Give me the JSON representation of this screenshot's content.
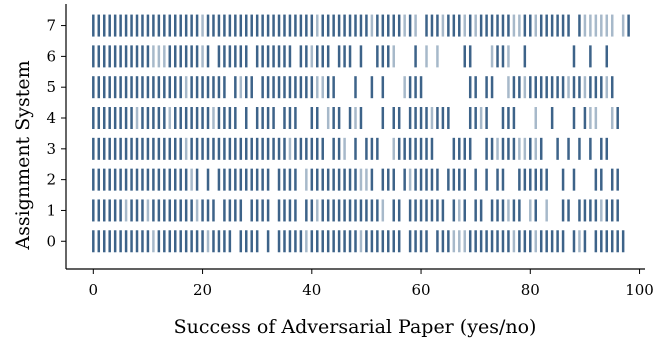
{
  "chart_data": {
    "type": "event-strip",
    "xlabel": "Success of Adversarial Paper (yes/no)",
    "ylabel": "Assignment System",
    "xlim": [
      -5,
      101
    ],
    "ylim": [
      -0.9,
      7.7
    ],
    "xticks": [
      0,
      20,
      40,
      60,
      80,
      100
    ],
    "yticks": [
      0,
      1,
      2,
      3,
      4,
      5,
      6,
      7
    ],
    "spines": [
      "left",
      "bottom"
    ],
    "grid": false,
    "colors": {
      "success": "#3d6389",
      "failure": "#a7b9ca"
    },
    "encoding": "each tick = one adversarial paper; dark = success (yes), light = failure (no)",
    "rows": [
      {
        "system": 0,
        "last": 97,
        "gaps": [
          [
            26,
            27
          ],
          [
            31,
            32
          ],
          [
            33,
            34
          ],
          [
            57,
            58
          ],
          [
            62,
            63
          ],
          [
            87,
            88
          ],
          [
            91,
            92
          ]
        ],
        "fail": [
          [
            11,
            12
          ],
          [
            21,
            22
          ],
          [
            33,
            34
          ],
          [
            39,
            40
          ],
          [
            49,
            50
          ],
          [
            66,
            69
          ],
          [
            77,
            78
          ],
          [
            81,
            82
          ],
          [
            89,
            90
          ]
        ]
      },
      {
        "system": 1,
        "last": 96,
        "gaps": [
          [
            23,
            24
          ],
          [
            28,
            29
          ],
          [
            33,
            34
          ],
          [
            38,
            39
          ],
          [
            54,
            55
          ],
          [
            57,
            58
          ],
          [
            65,
            66
          ],
          [
            69,
            70
          ],
          [
            72,
            73
          ],
          [
            79,
            80
          ],
          [
            82,
            83
          ],
          [
            84,
            85
          ],
          [
            85,
            86
          ],
          [
            88,
            89
          ]
        ],
        "fail": [
          [
            6,
            7
          ],
          [
            10,
            11
          ],
          [
            19,
            20
          ],
          [
            41,
            42
          ],
          [
            53,
            54
          ],
          [
            67,
            68
          ],
          [
            76,
            77
          ],
          [
            80,
            81
          ],
          [
            83,
            84
          ],
          [
            93,
            94
          ]
        ]
      },
      {
        "system": 2,
        "last": 96,
        "gaps": [
          [
            20,
            21
          ],
          [
            22,
            23
          ],
          [
            33,
            34
          ],
          [
            38,
            39
          ],
          [
            52,
            53
          ],
          [
            56,
            57
          ],
          [
            64,
            65
          ],
          [
            69,
            70
          ],
          [
            71,
            72
          ],
          [
            73,
            74
          ],
          [
            76,
            77
          ],
          [
            77,
            78
          ],
          [
            84,
            85
          ],
          [
            85,
            86
          ],
          [
            87,
            88
          ],
          [
            89,
            90
          ],
          [
            90,
            91
          ],
          [
            91,
            92
          ],
          [
            94,
            95
          ]
        ],
        "fail": [
          [
            18,
            19
          ],
          [
            38,
            39
          ],
          [
            39,
            40
          ],
          [
            49,
            50
          ],
          [
            50,
            51
          ],
          [
            58,
            59
          ],
          [
            69,
            70
          ],
          [
            84,
            85
          ]
        ]
      },
      {
        "system": 3,
        "last": 94,
        "gaps": [
          [
            43,
            44
          ],
          [
            47,
            48
          ],
          [
            49,
            50
          ],
          [
            53,
            54
          ],
          [
            54,
            55
          ],
          [
            63,
            64
          ],
          [
            64,
            65
          ],
          [
            65,
            66
          ],
          [
            70,
            71
          ],
          [
            71,
            72
          ],
          [
            83,
            84
          ],
          [
            84,
            85
          ],
          [
            86,
            87
          ],
          [
            88,
            89
          ],
          [
            90,
            91
          ],
          [
            92,
            93
          ]
        ],
        "fail": [
          [
            17,
            18
          ],
          [
            36,
            37
          ],
          [
            46,
            47
          ],
          [
            55,
            56
          ],
          [
            63,
            64
          ],
          [
            74,
            75
          ],
          [
            78,
            80
          ],
          [
            81,
            82
          ]
        ]
      },
      {
        "system": 4,
        "last": 96,
        "gaps": [
          [
            27,
            28
          ],
          [
            29,
            30
          ],
          [
            34,
            35
          ],
          [
            38,
            39
          ],
          [
            39,
            40
          ],
          [
            42,
            43
          ],
          [
            46,
            47
          ],
          [
            50,
            51
          ],
          [
            51,
            52
          ],
          [
            52,
            53
          ],
          [
            54,
            55
          ],
          [
            57,
            58
          ],
          [
            66,
            67
          ],
          [
            67,
            68
          ],
          [
            68,
            69
          ],
          [
            73,
            74
          ],
          [
            74,
            75
          ],
          [
            78,
            79
          ],
          [
            79,
            80
          ],
          [
            80,
            81
          ],
          [
            82,
            83
          ],
          [
            83,
            84
          ],
          [
            85,
            86
          ],
          [
            86,
            87
          ],
          [
            87,
            88
          ],
          [
            89,
            90
          ],
          [
            93,
            94
          ],
          [
            94,
            95
          ]
        ],
        "fail": [
          [
            8,
            9
          ],
          [
            14,
            15
          ],
          [
            22,
            23
          ],
          [
            43,
            44
          ],
          [
            48,
            49
          ],
          [
            62,
            63
          ],
          [
            67,
            68
          ],
          [
            71,
            72
          ],
          [
            81,
            82
          ],
          [
            87,
            88
          ],
          [
            91,
            92
          ],
          [
            92,
            93
          ],
          [
            95,
            96
          ]
        ]
      },
      {
        "system": 5,
        "last": 95,
        "gaps": [
          [
            25,
            26
          ],
          [
            30,
            31
          ],
          [
            45,
            46
          ],
          [
            46,
            47
          ],
          [
            47,
            48
          ],
          [
            49,
            50
          ],
          [
            50,
            51
          ],
          [
            52,
            53
          ],
          [
            54,
            55
          ],
          [
            55,
            56
          ],
          [
            56,
            57
          ],
          [
            61,
            62
          ],
          [
            62,
            63
          ],
          [
            63,
            64
          ],
          [
            64,
            65
          ],
          [
            65,
            66
          ],
          [
            66,
            67
          ],
          [
            67,
            68
          ],
          [
            68,
            69
          ],
          [
            71,
            72
          ],
          [
            74,
            75
          ],
          [
            75,
            76
          ]
        ],
        "fail": [
          [
            17,
            18
          ],
          [
            27,
            28
          ],
          [
            41,
            42
          ],
          [
            42,
            43
          ],
          [
            57,
            58
          ],
          [
            76,
            77
          ],
          [
            79,
            80
          ],
          [
            87,
            88
          ],
          [
            90,
            91
          ],
          [
            94,
            95
          ]
        ]
      },
      {
        "system": 6,
        "last": 94,
        "gaps": [
          [
            22,
            23
          ],
          [
            29,
            30
          ],
          [
            37,
            38
          ],
          [
            44,
            45
          ],
          [
            48,
            49
          ],
          [
            50,
            51
          ],
          [
            51,
            52
          ],
          [
            56,
            57
          ],
          [
            57,
            58
          ],
          [
            58,
            59
          ],
          [
            60,
            61
          ],
          [
            62,
            63
          ],
          [
            64,
            65
          ],
          [
            65,
            66
          ],
          [
            66,
            67
          ],
          [
            67,
            68
          ],
          [
            70,
            71
          ],
          [
            71,
            72
          ],
          [
            72,
            73
          ],
          [
            77,
            78
          ],
          [
            78,
            79
          ],
          [
            80,
            81
          ],
          [
            81,
            82
          ],
          [
            82,
            83
          ],
          [
            83,
            84
          ],
          [
            84,
            85
          ],
          [
            85,
            86
          ],
          [
            86,
            87
          ],
          [
            87,
            88
          ],
          [
            89,
            90
          ],
          [
            90,
            91
          ],
          [
            92,
            93
          ],
          [
            93,
            94
          ]
        ],
        "fail": [
          [
            11,
            14
          ],
          [
            20,
            21
          ],
          [
            40,
            41
          ],
          [
            55,
            56
          ],
          [
            60,
            65
          ],
          [
            67,
            68
          ],
          [
            73,
            74
          ],
          [
            76,
            77
          ],
          [
            78,
            79
          ],
          [
            86,
            87
          ]
        ]
      },
      {
        "system": 7,
        "last": 98,
        "gaps": [
          [
            60,
            61
          ],
          [
            88,
            89
          ],
          [
            96,
            97
          ]
        ],
        "fail": [
          [
            20,
            21
          ],
          [
            41,
            42
          ],
          [
            51,
            52
          ],
          [
            57,
            58
          ],
          [
            59,
            60
          ],
          [
            64,
            65
          ],
          [
            68,
            69
          ],
          [
            70,
            71
          ],
          [
            77,
            79
          ],
          [
            81,
            82
          ],
          [
            90,
            96
          ],
          [
            97,
            98
          ]
        ]
      }
    ]
  }
}
